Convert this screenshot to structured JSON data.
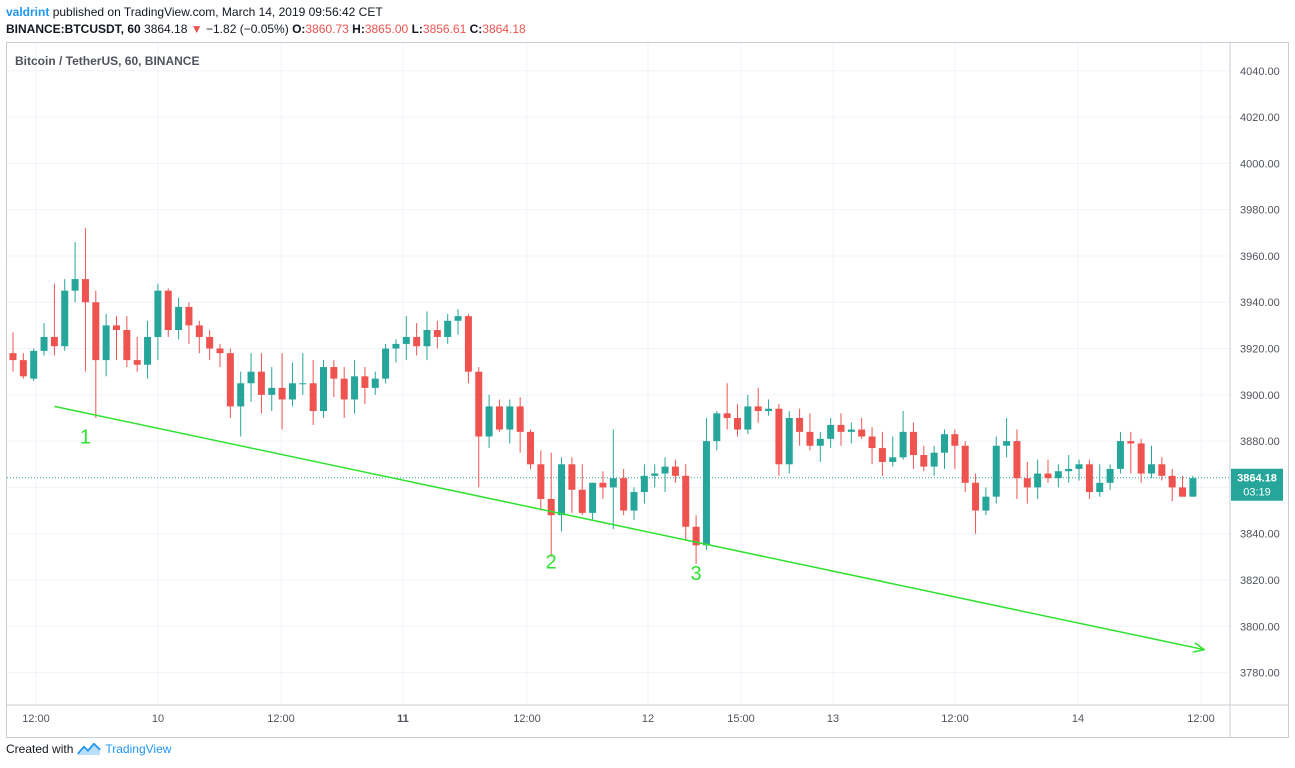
{
  "header": {
    "author": "valdrint",
    "published_text": "published on TradingView.com, March 14, 2019 09:56:42 CET",
    "symbol": "BINANCE:BTCUSDT, 60",
    "last": "3864.18",
    "change": "−1.82 (−0.05%)",
    "o_label": "O:",
    "o_value": "3860.73",
    "h_label": "H:",
    "h_value": "3865.00",
    "l_label": "L:",
    "l_value": "3856.61",
    "c_label": "C:",
    "c_value": "3864.18"
  },
  "legend": {
    "title": "Bitcoin / TetherUS, 60, BINANCE"
  },
  "price_tag": {
    "price": "3864.18",
    "countdown": "03:19"
  },
  "footer": {
    "created_with": "Created with",
    "brand": "TradingView"
  },
  "colors": {
    "up": "#26a69a",
    "down": "#ef5350",
    "trend": "#2ee22e",
    "grid": "#f0f3fa"
  },
  "chart_data": {
    "type": "candlestick",
    "ylim": [
      3766,
      4052
    ],
    "y_ticks": [
      "4040.00",
      "4020.00",
      "4000.00",
      "3980.00",
      "3960.00",
      "3940.00",
      "3920.00",
      "3900.00",
      "3880.00",
      "3860.00",
      "3840.00",
      "3820.00",
      "3800.00",
      "3780.00"
    ],
    "x_ticks": [
      {
        "label": "12:00",
        "bold": false
      },
      {
        "label": "10",
        "bold": false
      },
      {
        "label": "12:00",
        "bold": false
      },
      {
        "label": "11",
        "bold": true
      },
      {
        "label": "12:00",
        "bold": false
      },
      {
        "label": "12",
        "bold": false
      },
      {
        "label": "15:00",
        "bold": false
      },
      {
        "label": "13",
        "bold": false
      },
      {
        "label": "12:00",
        "bold": false
      },
      {
        "label": "14",
        "bold": false
      },
      {
        "label": "12:00",
        "bold": false
      }
    ],
    "candles": [
      [
        3918,
        3927,
        3910,
        3915
      ],
      [
        3915,
        3918,
        3907,
        3908
      ],
      [
        3907,
        3920,
        3906,
        3919
      ],
      [
        3919,
        3931,
        3917,
        3925
      ],
      [
        3925,
        3948,
        3917,
        3921
      ],
      [
        3921,
        3950,
        3919,
        3945
      ],
      [
        3945,
        3966,
        3940,
        3950
      ],
      [
        3950,
        3972,
        3910,
        3940
      ],
      [
        3940,
        3945,
        3890,
        3915
      ],
      [
        3915,
        3935,
        3908,
        3930
      ],
      [
        3930,
        3934,
        3915,
        3928
      ],
      [
        3928,
        3934,
        3912,
        3915
      ],
      [
        3915,
        3925,
        3910,
        3913
      ],
      [
        3913,
        3932,
        3907,
        3925
      ],
      [
        3925,
        3948,
        3915,
        3945
      ],
      [
        3945,
        3946,
        3925,
        3928
      ],
      [
        3928,
        3942,
        3924,
        3938
      ],
      [
        3938,
        3940,
        3922,
        3930
      ],
      [
        3930,
        3932,
        3918,
        3925
      ],
      [
        3925,
        3928,
        3915,
        3920
      ],
      [
        3920,
        3922,
        3912,
        3918
      ],
      [
        3918,
        3920,
        3890,
        3895
      ],
      [
        3895,
        3910,
        3882,
        3905
      ],
      [
        3905,
        3918,
        3897,
        3910
      ],
      [
        3910,
        3918,
        3892,
        3900
      ],
      [
        3900,
        3912,
        3893,
        3903
      ],
      [
        3903,
        3918,
        3885,
        3898
      ],
      [
        3898,
        3914,
        3895,
        3905
      ],
      [
        3905,
        3918,
        3900,
        3905
      ],
      [
        3905,
        3915,
        3887,
        3893
      ],
      [
        3893,
        3915,
        3890,
        3912
      ],
      [
        3912,
        3915,
        3899,
        3907
      ],
      [
        3907,
        3912,
        3890,
        3898
      ],
      [
        3898,
        3915,
        3892,
        3908
      ],
      [
        3908,
        3912,
        3896,
        3903
      ],
      [
        3903,
        3910,
        3900,
        3907
      ],
      [
        3907,
        3922,
        3905,
        3920
      ],
      [
        3920,
        3924,
        3914,
        3922
      ],
      [
        3922,
        3934,
        3915,
        3925
      ],
      [
        3925,
        3931,
        3917,
        3921
      ],
      [
        3921,
        3936,
        3915,
        3928
      ],
      [
        3928,
        3932,
        3920,
        3925
      ],
      [
        3925,
        3935,
        3922,
        3932
      ],
      [
        3932,
        3937,
        3926,
        3934
      ],
      [
        3934,
        3935,
        3905,
        3910
      ],
      [
        3910,
        3912,
        3860,
        3882
      ],
      [
        3882,
        3900,
        3877,
        3895
      ],
      [
        3895,
        3898,
        3884,
        3885
      ],
      [
        3885,
        3898,
        3879,
        3895
      ],
      [
        3895,
        3899,
        3875,
        3884
      ],
      [
        3884,
        3885,
        3868,
        3870
      ],
      [
        3870,
        3876,
        3850,
        3855
      ],
      [
        3855,
        3875,
        3830,
        3848
      ],
      [
        3848,
        3873,
        3841,
        3870
      ],
      [
        3870,
        3873,
        3849,
        3859
      ],
      [
        3859,
        3870,
        3848,
        3849
      ],
      [
        3849,
        3862,
        3846,
        3862
      ],
      [
        3862,
        3867,
        3855,
        3860
      ],
      [
        3860,
        3885,
        3842,
        3864
      ],
      [
        3864,
        3868,
        3848,
        3850
      ],
      [
        3850,
        3860,
        3846,
        3858
      ],
      [
        3858,
        3870,
        3853,
        3865
      ],
      [
        3865,
        3870,
        3860,
        3866
      ],
      [
        3866,
        3873,
        3858,
        3869
      ],
      [
        3869,
        3872,
        3862,
        3865
      ],
      [
        3865,
        3870,
        3837,
        3843
      ],
      [
        3843,
        3848,
        3827,
        3835
      ],
      [
        3835,
        3890,
        3833,
        3880
      ],
      [
        3880,
        3893,
        3876,
        3892
      ],
      [
        3892,
        3905,
        3885,
        3890
      ],
      [
        3890,
        3896,
        3882,
        3885
      ],
      [
        3885,
        3900,
        3883,
        3895
      ],
      [
        3895,
        3903,
        3888,
        3893
      ],
      [
        3893,
        3898,
        3891,
        3894
      ],
      [
        3894,
        3896,
        3865,
        3870
      ],
      [
        3870,
        3893,
        3866,
        3890
      ],
      [
        3890,
        3894,
        3878,
        3884
      ],
      [
        3884,
        3892,
        3876,
        3878
      ],
      [
        3878,
        3884,
        3871,
        3881
      ],
      [
        3881,
        3890,
        3877,
        3887
      ],
      [
        3887,
        3892,
        3878,
        3884
      ],
      [
        3884,
        3888,
        3879,
        3885
      ],
      [
        3885,
        3890,
        3881,
        3882
      ],
      [
        3882,
        3886,
        3870,
        3877
      ],
      [
        3877,
        3884,
        3865,
        3871
      ],
      [
        3871,
        3882,
        3869,
        3873
      ],
      [
        3873,
        3893,
        3872,
        3884
      ],
      [
        3884,
        3888,
        3868,
        3874
      ],
      [
        3874,
        3878,
        3867,
        3869
      ],
      [
        3869,
        3878,
        3865,
        3875
      ],
      [
        3875,
        3885,
        3868,
        3883
      ],
      [
        3883,
        3885,
        3868,
        3878
      ],
      [
        3878,
        3880,
        3858,
        3862
      ],
      [
        3862,
        3866,
        3840,
        3850
      ],
      [
        3850,
        3860,
        3848,
        3856
      ],
      [
        3856,
        3882,
        3853,
        3878
      ],
      [
        3878,
        3890,
        3873,
        3880
      ],
      [
        3880,
        3885,
        3855,
        3864
      ],
      [
        3864,
        3871,
        3853,
        3860
      ],
      [
        3860,
        3872,
        3855,
        3866
      ],
      [
        3866,
        3872,
        3862,
        3864
      ],
      [
        3864,
        3870,
        3860,
        3867
      ],
      [
        3867,
        3874,
        3862,
        3868
      ],
      [
        3868,
        3872,
        3863,
        3870
      ],
      [
        3870,
        3872,
        3855,
        3858
      ],
      [
        3858,
        3870,
        3856,
        3862
      ],
      [
        3862,
        3870,
        3859,
        3868
      ],
      [
        3868,
        3884,
        3866,
        3880
      ],
      [
        3880,
        3884,
        3866,
        3879
      ],
      [
        3879,
        3881,
        3862,
        3866
      ],
      [
        3866,
        3878,
        3864,
        3870
      ],
      [
        3870,
        3873,
        3863,
        3865
      ],
      [
        3865,
        3868,
        3854,
        3860
      ],
      [
        3860,
        3865,
        3856,
        3856
      ],
      [
        3856,
        3865,
        3856,
        3864
      ]
    ],
    "trend_line": {
      "from": [
        "index-4",
        3895
      ],
      "to": [
        "index-115",
        3790
      ]
    },
    "annotations": [
      {
        "label": "1",
        "price": 3879,
        "index": 7
      },
      {
        "label": "2",
        "price": 3825,
        "index": 52
      },
      {
        "label": "3",
        "price": 3820,
        "index": 66
      }
    ],
    "last_price_line": 3864.18
  }
}
